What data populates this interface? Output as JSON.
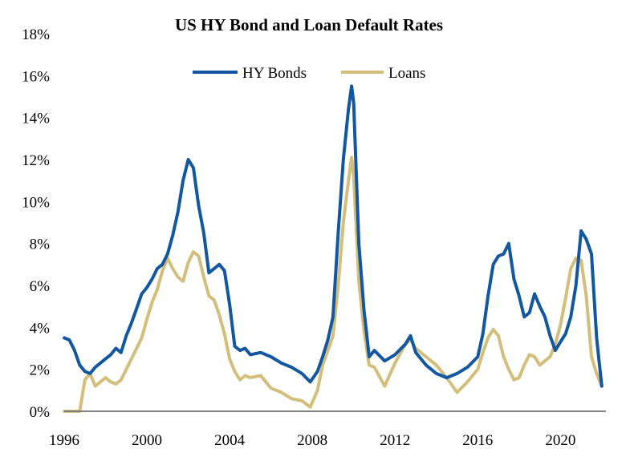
{
  "chart_data": {
    "type": "line",
    "title": "US HY Bond and Loan Default Rates",
    "xlabel": "",
    "ylabel": "",
    "xlim": [
      1996,
      2022.2
    ],
    "ylim": [
      0,
      18
    ],
    "y_ticks": [
      "0%",
      "2%",
      "4%",
      "6%",
      "8%",
      "10%",
      "12%",
      "14%",
      "16%",
      "18%"
    ],
    "x_ticks": [
      "1996",
      "2000",
      "2004",
      "2008",
      "2012",
      "2016",
      "2020"
    ],
    "legend_position": "top-center",
    "grid": false,
    "series": [
      {
        "name": "HY Bonds",
        "color": "#1257a0",
        "x": [
          1996.0,
          1996.25,
          1996.5,
          1996.75,
          1997.0,
          1997.25,
          1997.5,
          1997.75,
          1998.0,
          1998.25,
          1998.5,
          1998.75,
          1999.0,
          1999.25,
          1999.5,
          1999.75,
          2000.0,
          2000.25,
          2000.5,
          2000.75,
          2001.0,
          2001.25,
          2001.5,
          2001.75,
          2002.0,
          2002.25,
          2002.5,
          2002.75,
          2003.0,
          2003.25,
          2003.5,
          2003.75,
          2004.0,
          2004.25,
          2004.5,
          2004.75,
          2005.0,
          2005.5,
          2006.0,
          2006.5,
          2007.0,
          2007.5,
          2007.9,
          2008.25,
          2008.5,
          2008.75,
          2009.0,
          2009.25,
          2009.5,
          2009.75,
          2009.9,
          2010.0,
          2010.25,
          2010.5,
          2010.75,
          2011.0,
          2011.5,
          2012.0,
          2012.5,
          2012.75,
          2013.0,
          2013.5,
          2014.0,
          2014.5,
          2015.0,
          2015.5,
          2016.0,
          2016.25,
          2016.5,
          2016.75,
          2017.0,
          2017.25,
          2017.5,
          2017.75,
          2018.0,
          2018.25,
          2018.5,
          2018.75,
          2019.0,
          2019.25,
          2019.5,
          2019.75,
          2020.0,
          2020.25,
          2020.5,
          2020.75,
          2021.0,
          2021.25,
          2021.5,
          2021.75,
          2022.0
        ],
        "values": [
          3.5,
          3.4,
          2.9,
          2.2,
          1.9,
          1.8,
          2.1,
          2.3,
          2.5,
          2.7,
          3.0,
          2.8,
          3.6,
          4.2,
          4.9,
          5.6,
          5.9,
          6.3,
          6.8,
          7.0,
          7.5,
          8.4,
          9.5,
          11.0,
          12.0,
          11.6,
          9.8,
          8.5,
          6.6,
          6.8,
          7.0,
          6.7,
          5.1,
          3.1,
          2.9,
          3.0,
          2.7,
          2.8,
          2.6,
          2.3,
          2.1,
          1.8,
          1.4,
          1.9,
          2.6,
          3.4,
          4.5,
          8.5,
          12.0,
          14.4,
          15.5,
          14.7,
          8.0,
          4.8,
          2.6,
          2.9,
          2.4,
          2.7,
          3.2,
          3.6,
          2.8,
          2.2,
          1.8,
          1.6,
          1.8,
          2.1,
          2.6,
          3.7,
          5.5,
          7.0,
          7.4,
          7.5,
          8.0,
          6.3,
          5.5,
          4.5,
          4.7,
          5.6,
          5.0,
          4.5,
          3.6,
          2.9,
          3.3,
          3.7,
          4.5,
          6.0,
          8.6,
          8.2,
          7.5,
          3.5,
          1.2
        ]
      },
      {
        "name": "Loans",
        "color": "#d4be7c",
        "x": [
          1996.0,
          1996.25,
          1996.5,
          1996.75,
          1997.0,
          1997.25,
          1997.5,
          1997.75,
          1998.0,
          1998.25,
          1998.5,
          1998.75,
          1999.0,
          1999.25,
          1999.5,
          1999.75,
          2000.0,
          2000.25,
          2000.5,
          2000.75,
          2001.0,
          2001.25,
          2001.5,
          2001.75,
          2002.0,
          2002.25,
          2002.5,
          2002.75,
          2003.0,
          2003.25,
          2003.5,
          2003.75,
          2004.0,
          2004.25,
          2004.5,
          2004.75,
          2005.0,
          2005.5,
          2006.0,
          2006.5,
          2007.0,
          2007.5,
          2007.9,
          2008.25,
          2008.5,
          2008.75,
          2009.0,
          2009.25,
          2009.5,
          2009.75,
          2009.9,
          2010.0,
          2010.25,
          2010.5,
          2010.75,
          2011.0,
          2011.5,
          2012.0,
          2012.5,
          2012.75,
          2013.0,
          2013.5,
          2014.0,
          2014.5,
          2015.0,
          2015.5,
          2016.0,
          2016.25,
          2016.5,
          2016.75,
          2017.0,
          2017.25,
          2017.5,
          2017.75,
          2018.0,
          2018.25,
          2018.5,
          2018.75,
          2019.0,
          2019.25,
          2019.5,
          2019.75,
          2020.0,
          2020.25,
          2020.5,
          2020.75,
          2021.0,
          2021.25,
          2021.5,
          2021.75,
          2022.0
        ],
        "values": [
          0.0,
          0.0,
          0.0,
          0.0,
          1.5,
          1.8,
          1.2,
          1.4,
          1.6,
          1.4,
          1.3,
          1.5,
          2.0,
          2.5,
          3.0,
          3.5,
          4.4,
          5.2,
          5.8,
          6.7,
          7.3,
          6.8,
          6.4,
          6.2,
          7.1,
          7.6,
          7.4,
          6.4,
          5.5,
          5.3,
          4.6,
          3.7,
          2.5,
          1.9,
          1.5,
          1.7,
          1.6,
          1.7,
          1.1,
          0.9,
          0.6,
          0.5,
          0.2,
          1.0,
          2.2,
          2.9,
          3.6,
          6.0,
          9.0,
          11.0,
          12.1,
          11.2,
          6.2,
          3.8,
          2.2,
          2.1,
          1.2,
          2.3,
          3.2,
          3.4,
          3.0,
          2.6,
          2.2,
          1.6,
          0.9,
          1.4,
          2.0,
          2.8,
          3.5,
          3.9,
          3.6,
          2.6,
          2.0,
          1.5,
          1.6,
          2.2,
          2.7,
          2.6,
          2.2,
          2.4,
          2.6,
          3.2,
          4.1,
          5.4,
          6.8,
          7.3,
          7.2,
          5.5,
          2.6,
          1.8,
          1.2
        ]
      }
    ]
  }
}
